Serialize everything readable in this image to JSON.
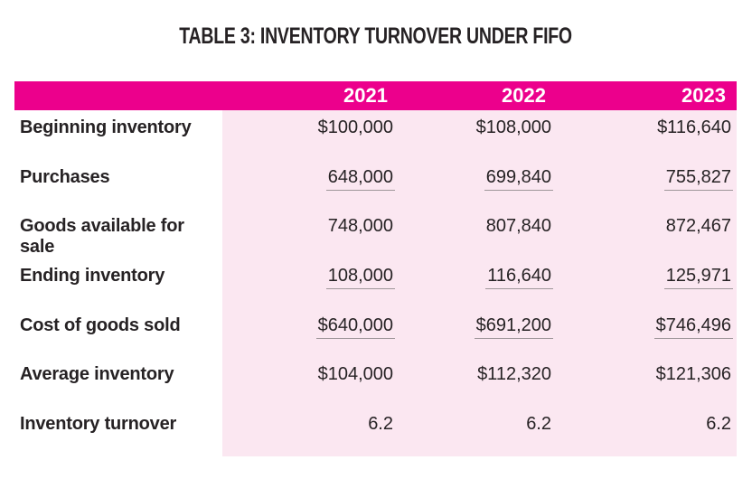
{
  "title": "TABLE 3: INVENTORY TURNOVER UNDER FIFO",
  "colors": {
    "page_bg": "#FFFFFF",
    "header_bg": "#EC008C",
    "header_text": "#FFFFFF",
    "body_bg": "#FBE7F1",
    "text": "#262224",
    "underline": "#9E9699"
  },
  "table": {
    "columns": [
      "2021",
      "2022",
      "2023"
    ],
    "rows": [
      {
        "label": "Beginning inventory",
        "values": [
          "$100,000",
          "$108,000",
          "$116,640"
        ],
        "underlined": false
      },
      {
        "label": "Purchases",
        "values": [
          "648,000",
          "699,840",
          "755,827"
        ],
        "underlined": true
      },
      {
        "label": "Goods available for sale",
        "values": [
          "748,000",
          "807,840",
          "872,467"
        ],
        "underlined": false
      },
      {
        "label": "Ending inventory",
        "values": [
          "108,000",
          "116,640",
          "125,971"
        ],
        "underlined": true
      },
      {
        "label": "Cost of goods sold",
        "values": [
          "$640,000",
          "$691,200",
          "$746,496"
        ],
        "underlined": true
      },
      {
        "label": "Average inventory",
        "values": [
          "$104,000",
          "$112,320",
          "$121,306"
        ],
        "underlined": false
      },
      {
        "label": "Inventory turnover",
        "values": [
          "6.2",
          "6.2",
          "6.2"
        ],
        "underlined": false
      }
    ]
  },
  "chart_data": {
    "type": "table",
    "title": "TABLE 3: INVENTORY TURNOVER UNDER FIFO",
    "categories": [
      "2021",
      "2022",
      "2023"
    ],
    "series": [
      {
        "name": "Beginning inventory",
        "values": [
          100000,
          108000,
          116640
        ]
      },
      {
        "name": "Purchases",
        "values": [
          648000,
          699840,
          755827
        ]
      },
      {
        "name": "Goods available for sale",
        "values": [
          748000,
          807840,
          872467
        ]
      },
      {
        "name": "Ending inventory",
        "values": [
          108000,
          116640,
          125971
        ]
      },
      {
        "name": "Cost of goods sold",
        "values": [
          640000,
          691200,
          746496
        ]
      },
      {
        "name": "Average inventory",
        "values": [
          104000,
          112320,
          121306
        ]
      },
      {
        "name": "Inventory turnover",
        "values": [
          6.2,
          6.2,
          6.2
        ]
      }
    ]
  }
}
